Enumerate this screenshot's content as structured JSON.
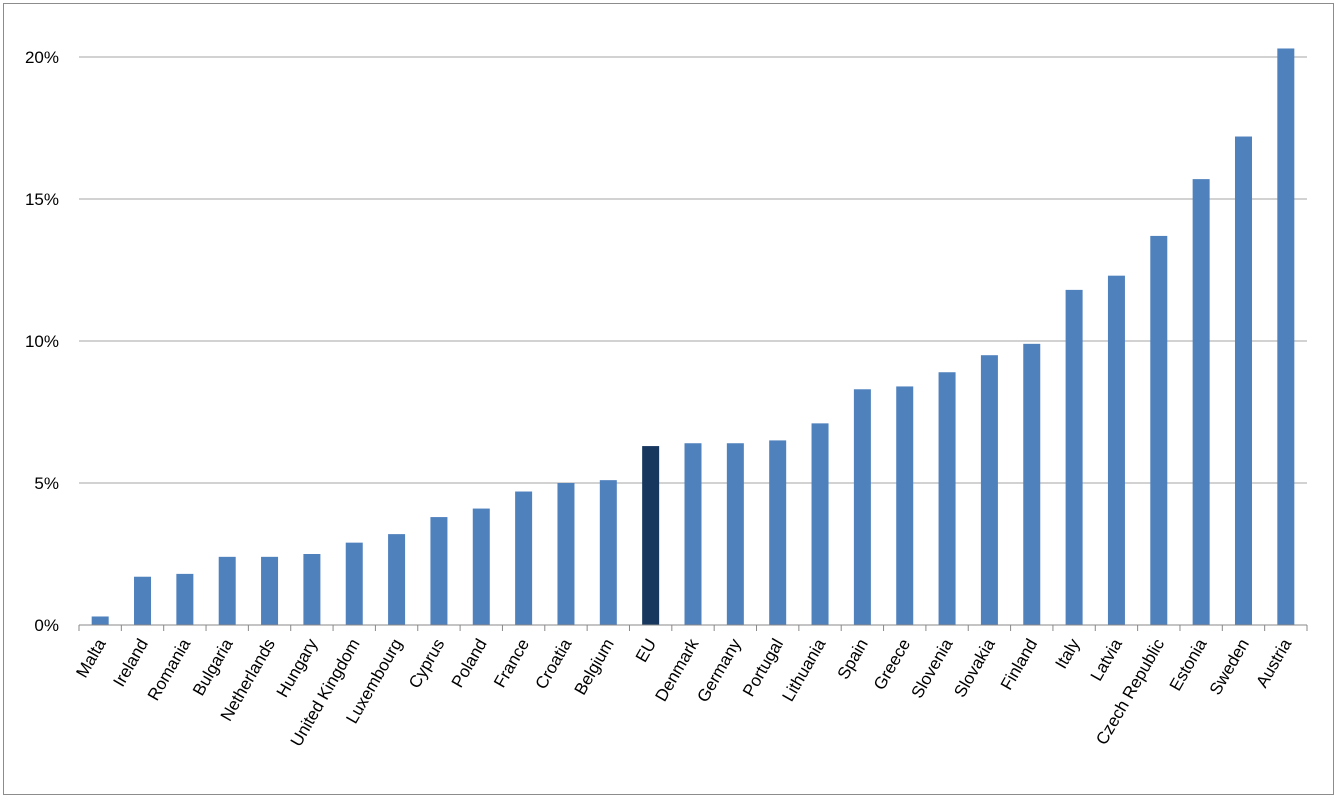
{
  "chart_data": {
    "type": "bar",
    "title": "",
    "xlabel": "",
    "ylabel": "",
    "ylim": [
      0,
      20
    ],
    "yticks": [
      0,
      5,
      10,
      15,
      20
    ],
    "ytick_labels": [
      "0%",
      "5%",
      "10%",
      "15%",
      "20%"
    ],
    "grid": true,
    "legend": "none",
    "categories": [
      "Malta",
      "Ireland",
      "Romania",
      "Bulgaria",
      "Netherlands",
      "Hungary",
      "United Kingdom",
      "Luxembourg",
      "Cyprus",
      "Poland",
      "France",
      "Croatia",
      "Belgium",
      "EU",
      "Denmark",
      "Germany",
      "Portugal",
      "Lithuania",
      "Spain",
      "Greece",
      "Slovenia",
      "Slovakia",
      "Finland",
      "Italy",
      "Latvia",
      "Czech Republic",
      "Estonia",
      "Sweden",
      "Austria"
    ],
    "values": [
      0.3,
      1.7,
      1.8,
      2.4,
      2.4,
      2.5,
      2.9,
      3.2,
      3.8,
      4.1,
      4.7,
      5.0,
      5.1,
      6.3,
      6.4,
      6.4,
      6.5,
      7.1,
      8.3,
      8.4,
      8.9,
      9.5,
      9.9,
      11.8,
      12.3,
      13.7,
      15.7,
      17.2,
      20.3
    ],
    "colors": {
      "bar": "#4f81bd",
      "highlight": "#17375e",
      "grid": "#a6a6a6",
      "axis": "#888888"
    },
    "highlight_category": "EU"
  }
}
